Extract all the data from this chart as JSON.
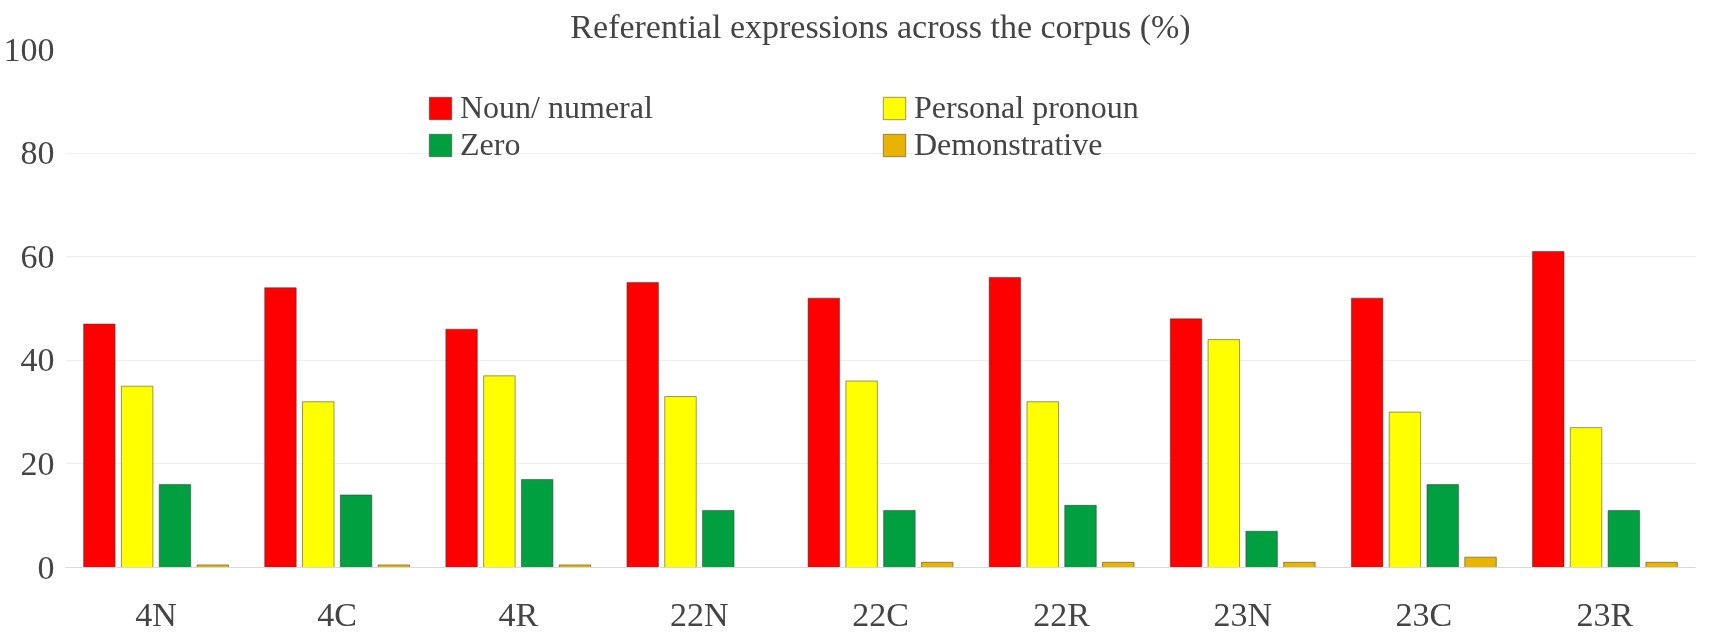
{
  "chart_data": {
    "type": "bar",
    "title": "Referential expressions across the corpus (%)",
    "categories": [
      "4N",
      "4C",
      "4R",
      "22N",
      "22C",
      "22R",
      "23N",
      "23C",
      "23R"
    ],
    "series": [
      {
        "name": "Noun/ numeral",
        "color": "#ff0000",
        "values": [
          47,
          54,
          46,
          55,
          52,
          56,
          48,
          52,
          61
        ]
      },
      {
        "name": "Personal pronoun",
        "color": "#ffff00",
        "values": [
          35,
          32,
          37,
          33,
          36,
          32,
          44,
          30,
          27
        ]
      },
      {
        "name": "Zero",
        "color": "#00a040",
        "values": [
          16,
          14,
          17,
          11,
          11,
          12,
          7,
          16,
          11
        ]
      },
      {
        "name": "Demonstrative",
        "color": "#e8b400",
        "values": [
          0.5,
          0.5,
          0.5,
          null,
          1,
          1,
          1,
          2,
          1
        ]
      }
    ],
    "ylim": [
      0,
      100
    ],
    "yticks": [
      0,
      20,
      40,
      60,
      80,
      100
    ],
    "grid": "y",
    "legend": "top"
  }
}
